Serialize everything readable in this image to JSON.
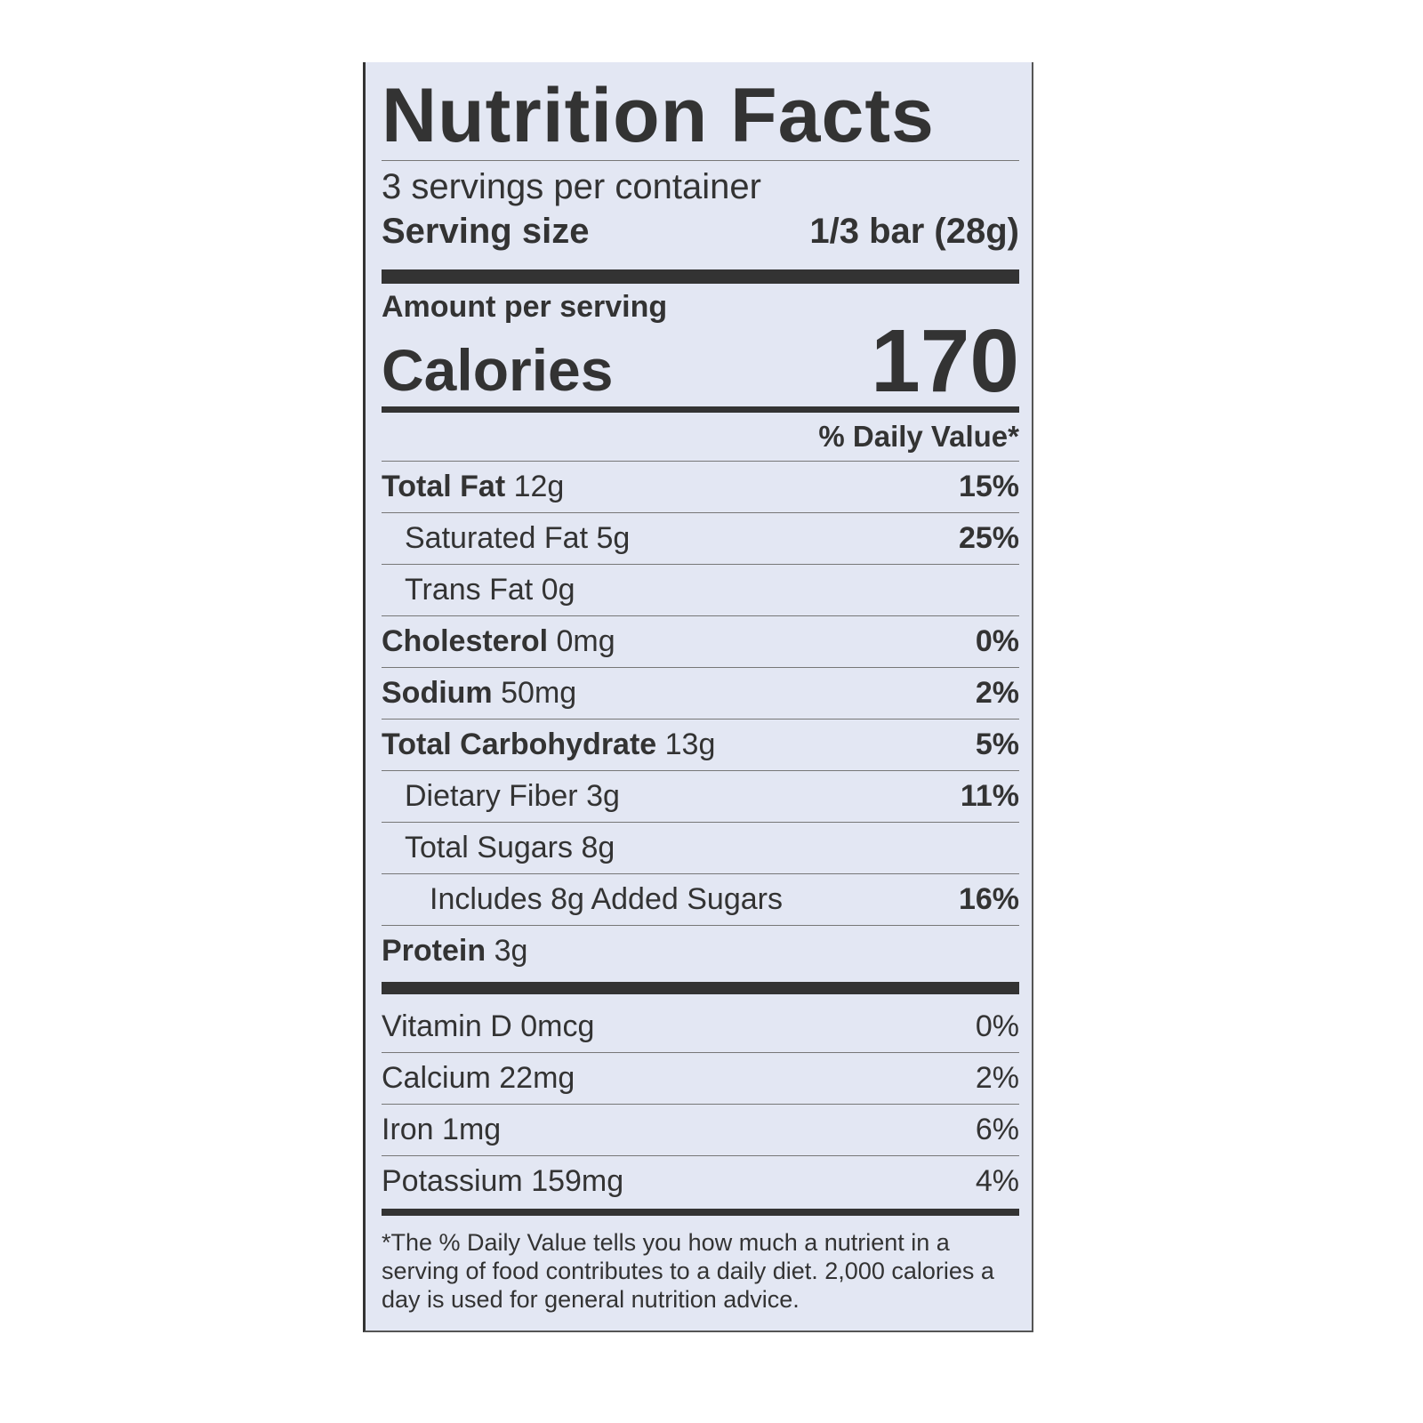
{
  "title": "Nutrition Facts",
  "servings_per_container": "3 servings per container",
  "serving_size": {
    "label": "Serving size",
    "value": "1/3 bar (28g)"
  },
  "amount_per_serving": "Amount per serving",
  "calories": {
    "label": "Calories",
    "value": "170"
  },
  "daily_value_header": "% Daily Value*",
  "nutrients": [
    {
      "name": "Total Fat",
      "amount": "12g",
      "dv": "15%",
      "bold": true,
      "indent": 0
    },
    {
      "name": "Saturated Fat",
      "amount": "5g",
      "dv": "25%",
      "bold": false,
      "indent": 1
    },
    {
      "name": "Trans Fat",
      "amount": "0g",
      "dv": "",
      "bold": false,
      "indent": 1
    },
    {
      "name": "Cholesterol",
      "amount": "0mg",
      "dv": "0%",
      "bold": true,
      "indent": 0
    },
    {
      "name": "Sodium",
      "amount": "50mg",
      "dv": "2%",
      "bold": true,
      "indent": 0
    },
    {
      "name": "Total Carbohydrate",
      "amount": "13g",
      "dv": "5%",
      "bold": true,
      "indent": 0
    },
    {
      "name": "Dietary Fiber",
      "amount": "3g",
      "dv": "11%",
      "bold": false,
      "indent": 1
    },
    {
      "name": "Total Sugars",
      "amount": "8g",
      "dv": "",
      "bold": false,
      "indent": 1
    },
    {
      "name": "Includes 8g Added Sugars",
      "amount": "",
      "dv": "16%",
      "bold": false,
      "indent": 2
    },
    {
      "name": "Protein",
      "amount": "3g",
      "dv": "",
      "bold": true,
      "indent": 0
    }
  ],
  "vitamins": [
    {
      "name": "Vitamin D",
      "amount": "0mcg",
      "dv": "0%"
    },
    {
      "name": "Calcium",
      "amount": "22mg",
      "dv": "2%"
    },
    {
      "name": "Iron",
      "amount": "1mg",
      "dv": "6%"
    },
    {
      "name": "Potassium",
      "amount": "159mg",
      "dv": "4%"
    }
  ],
  "footnote": "*The % Daily Value tells you how much a nutrient in a serving of food contributes to a daily diet. 2,000 calories a day is used for general nutrition advice.",
  "colors": {
    "background": "#e3e7f3",
    "ink": "#333333"
  }
}
